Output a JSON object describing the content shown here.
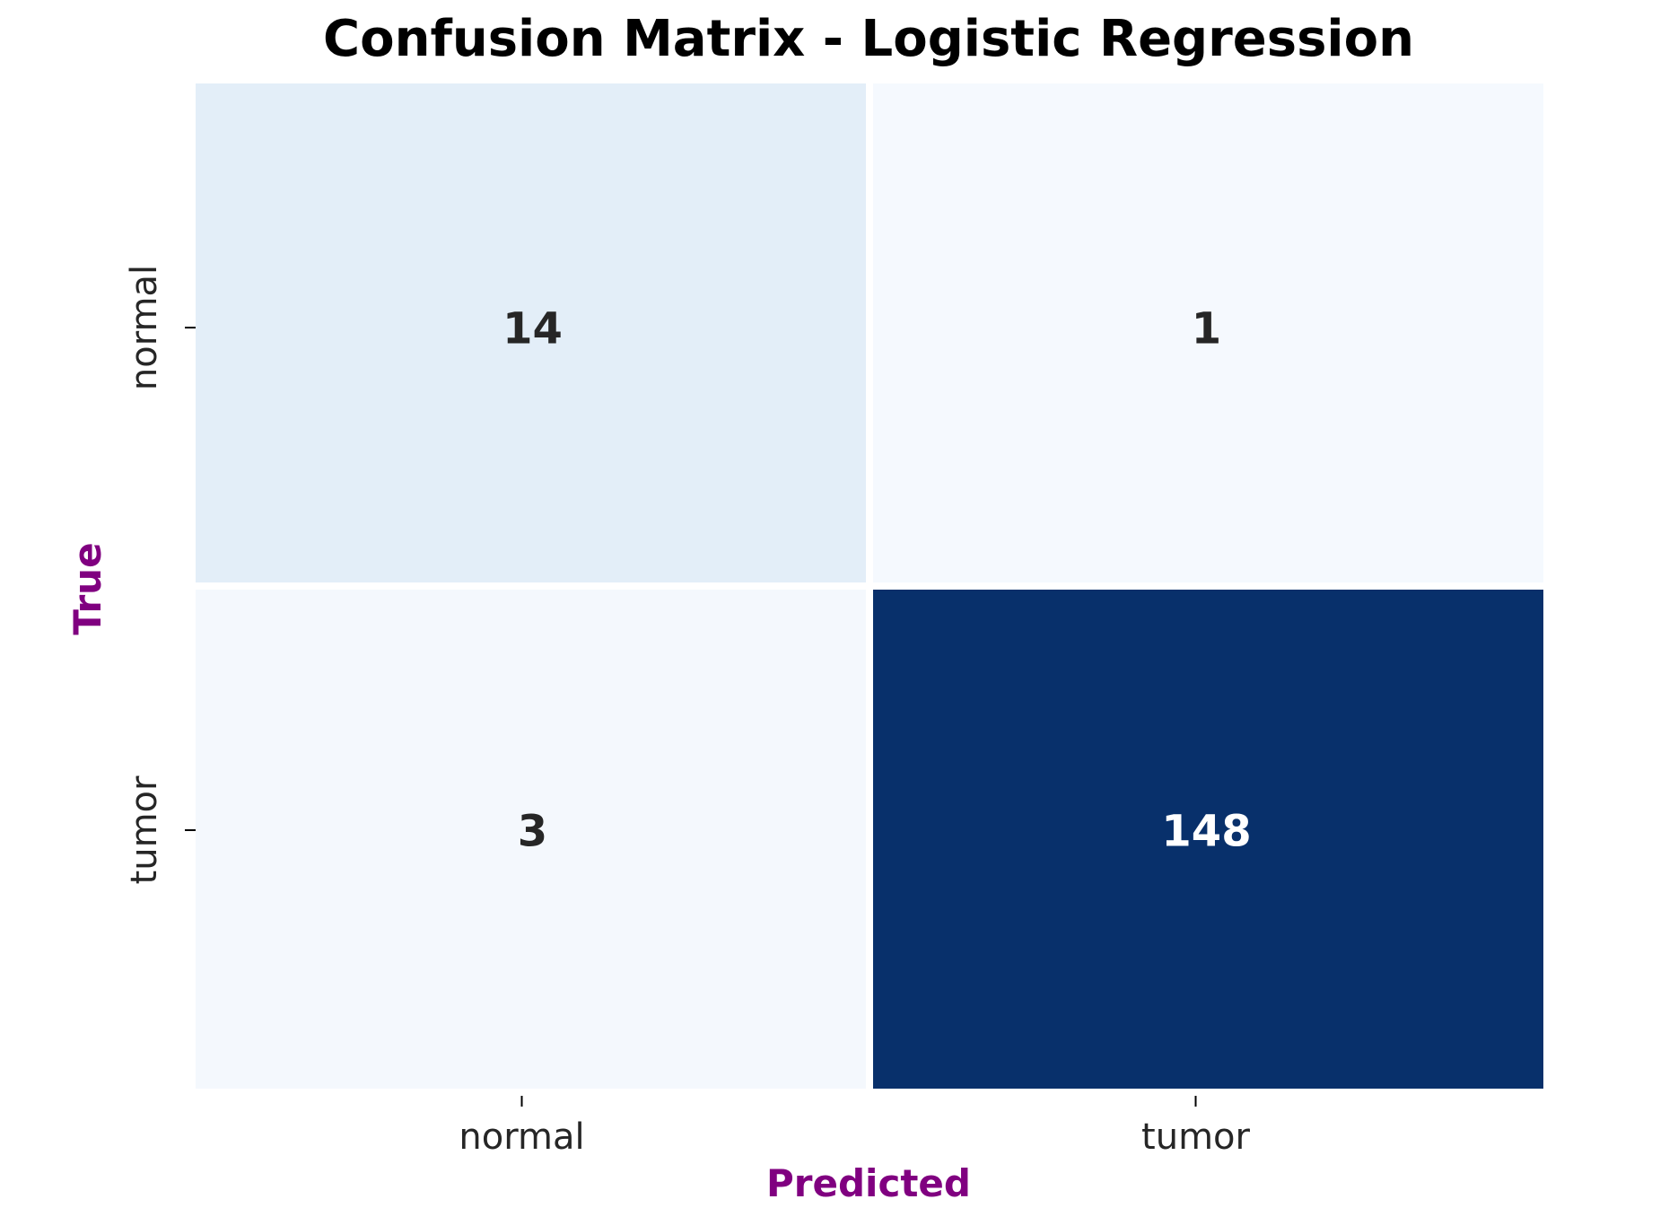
{
  "chart_data": {
    "type": "heatmap",
    "title": "Confusion Matrix - Logistic Regression",
    "xlabel": "Predicted",
    "ylabel": "True",
    "x_categories": [
      "normal",
      "tumor"
    ],
    "y_categories": [
      "normal",
      "tumor"
    ],
    "values": [
      [
        14,
        1
      ],
      [
        3,
        148
      ]
    ],
    "colormap": "Blues",
    "colorbar": false,
    "grid": false,
    "label_color": "#800080",
    "cell_text_dark": "#262626",
    "cell_text_light": "#ffffff",
    "cell_colors": [
      [
        "#e3eef8",
        "#f5f9fe"
      ],
      [
        "#f4f8fd",
        "#08306b"
      ]
    ]
  }
}
